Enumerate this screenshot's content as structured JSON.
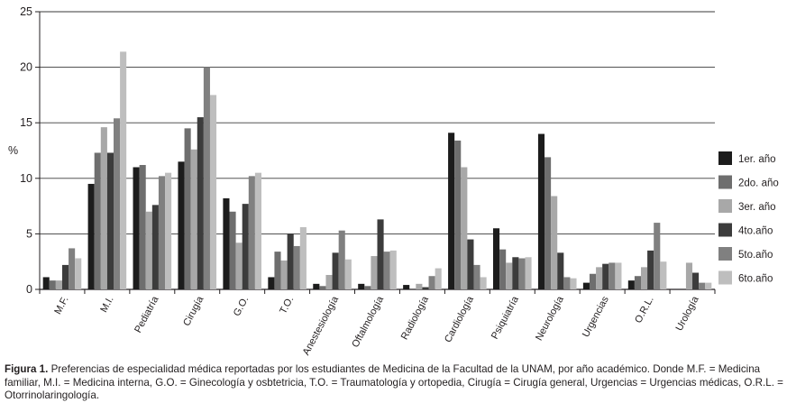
{
  "chart_data": {
    "type": "bar",
    "ylabel": "%",
    "ylim": [
      0,
      25
    ],
    "yticks": [
      "0",
      "5",
      "10",
      "15",
      "20",
      "25"
    ],
    "grid": true,
    "legend_position": "right",
    "categories": [
      "M.F.",
      "M.I.",
      "Pediatría",
      "Cirugía",
      "G.O.",
      "T.O.",
      "Anestesiología",
      "Oftalmología",
      "Radiología",
      "Cardiología",
      "Psiquiatría",
      "Neurología",
      "Urgencias",
      "O.R.L.",
      "Urología"
    ],
    "series": [
      {
        "name": "1er. año",
        "color": "#1c1c1c",
        "values": [
          1.1,
          9.5,
          11.0,
          11.5,
          8.2,
          1.1,
          0.5,
          0.5,
          0.4,
          14.1,
          5.5,
          14.0,
          0.6,
          0.8,
          0.0
        ]
      },
      {
        "name": "2do. año",
        "color": "#6e6e6e",
        "values": [
          0.8,
          12.3,
          11.2,
          14.5,
          7.0,
          3.4,
          0.3,
          0.3,
          0.0,
          13.4,
          3.6,
          11.9,
          1.4,
          1.2,
          0.0
        ]
      },
      {
        "name": "3er. año",
        "color": "#a8a8a8",
        "values": [
          0.8,
          14.6,
          7.0,
          12.6,
          4.2,
          2.6,
          1.3,
          3.0,
          0.5,
          11.0,
          2.4,
          8.4,
          2.0,
          2.0,
          2.4
        ]
      },
      {
        "name": "4to.año",
        "color": "#3c3c3c",
        "values": [
          2.2,
          12.3,
          7.6,
          15.5,
          7.7,
          5.0,
          3.3,
          6.3,
          0.2,
          4.5,
          2.9,
          3.3,
          2.3,
          3.5,
          1.5
        ]
      },
      {
        "name": "5to.año",
        "color": "#808080",
        "values": [
          3.7,
          15.4,
          10.2,
          20.0,
          10.2,
          3.9,
          5.3,
          3.4,
          1.2,
          2.2,
          2.8,
          1.1,
          2.4,
          6.0,
          0.6
        ]
      },
      {
        "name": "6to.año",
        "color": "#bebebe",
        "values": [
          2.8,
          21.4,
          10.5,
          17.5,
          10.5,
          5.6,
          2.7,
          3.5,
          1.9,
          1.1,
          2.9,
          1.0,
          2.4,
          2.5,
          0.6
        ]
      }
    ]
  },
  "caption": {
    "label": "Figura 1.",
    "text": "Preferencias de especialidad médica reportadas por los estudiantes de Medicina de la Facultad de la UNAM, por año académico. Donde M.F. = Medicina familiar, M.I. = Medicina interna, G.O. = Ginecología y osbtetricia, T.O. = Traumatología y ortopedia, Cirugía = Cirugía general, Urgencias = Urgencias médicas, O.R.L. = Otorrinolaringología."
  }
}
